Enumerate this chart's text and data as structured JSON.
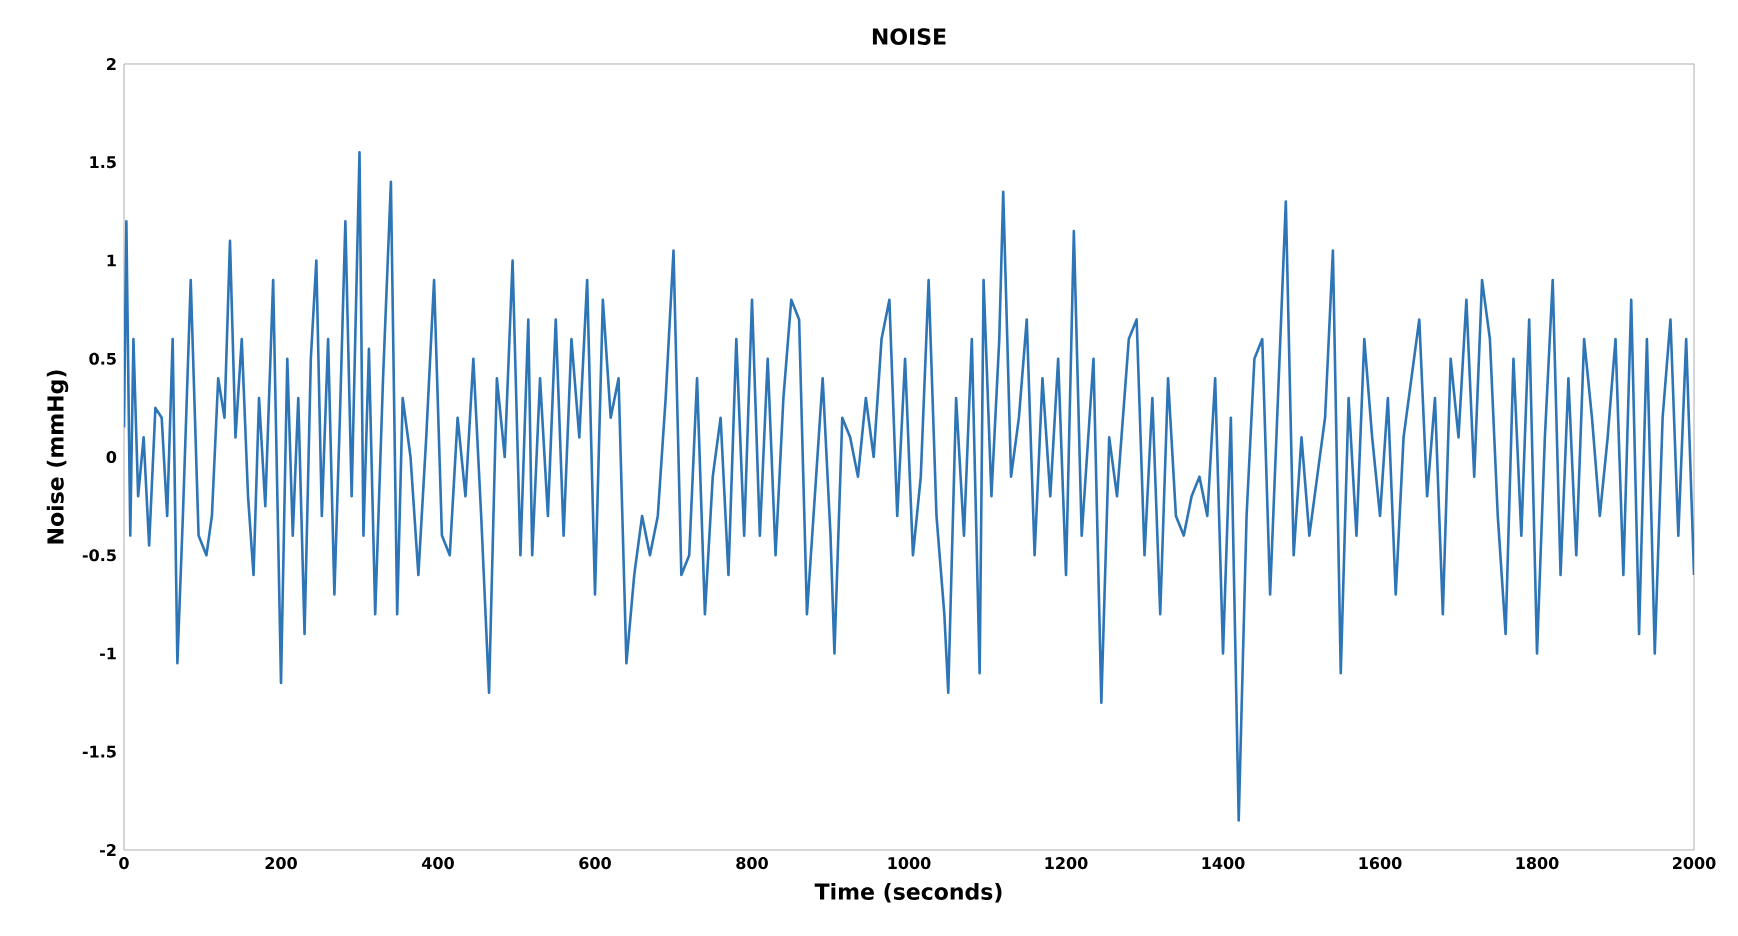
{
  "chart_data": {
    "type": "line",
    "title": "NOISE",
    "xlabel": "Time (seconds)",
    "ylabel": "Noise (mmHg)",
    "x": [
      0,
      3,
      8,
      12,
      18,
      25,
      32,
      40,
      48,
      55,
      62,
      68,
      75,
      85,
      95,
      105,
      112,
      120,
      128,
      135,
      142,
      150,
      158,
      165,
      172,
      180,
      190,
      200,
      208,
      215,
      222,
      230,
      238,
      245,
      252,
      260,
      268,
      275,
      282,
      290,
      300,
      305,
      312,
      320,
      330,
      340,
      348,
      355,
      365,
      375,
      385,
      395,
      405,
      415,
      425,
      435,
      445,
      455,
      465,
      475,
      485,
      495,
      505,
      515,
      520,
      530,
      540,
      550,
      560,
      570,
      580,
      590,
      600,
      610,
      620,
      630,
      640,
      650,
      660,
      670,
      680,
      690,
      700,
      710,
      720,
      730,
      740,
      750,
      760,
      770,
      780,
      790,
      800,
      810,
      820,
      830,
      840,
      850,
      860,
      870,
      880,
      890,
      900,
      905,
      915,
      925,
      935,
      945,
      955,
      965,
      975,
      985,
      995,
      1005,
      1015,
      1025,
      1035,
      1045,
      1050,
      1060,
      1070,
      1080,
      1090,
      1095,
      1105,
      1115,
      1120,
      1130,
      1140,
      1150,
      1160,
      1170,
      1180,
      1190,
      1200,
      1210,
      1220,
      1235,
      1245,
      1255,
      1265,
      1280,
      1290,
      1300,
      1310,
      1320,
      1330,
      1340,
      1350,
      1360,
      1370,
      1380,
      1390,
      1400,
      1410,
      1420,
      1430,
      1440,
      1450,
      1460,
      1470,
      1480,
      1490,
      1500,
      1510,
      1520,
      1530,
      1540,
      1550,
      1560,
      1570,
      1580,
      1590,
      1600,
      1610,
      1620,
      1630,
      1640,
      1650,
      1660,
      1670,
      1680,
      1690,
      1700,
      1710,
      1720,
      1730,
      1740,
      1750,
      1760,
      1770,
      1780,
      1790,
      1800,
      1810,
      1820,
      1830,
      1840,
      1850,
      1860,
      1870,
      1880,
      1890,
      1900,
      1910,
      1920,
      1930,
      1940,
      1950,
      1960,
      1970,
      1980,
      1990,
      2000
    ],
    "series": [
      {
        "color": "#2e75b6",
        "values": [
          0.15,
          1.2,
          -0.4,
          0.6,
          -0.2,
          0.1,
          -0.45,
          0.25,
          0.2,
          -0.3,
          0.6,
          -1.05,
          -0.3,
          0.9,
          -0.4,
          -0.5,
          -0.3,
          0.4,
          0.2,
          1.1,
          0.1,
          0.6,
          -0.2,
          -0.6,
          0.3,
          -0.25,
          0.9,
          -1.15,
          0.5,
          -0.4,
          0.3,
          -0.9,
          0.5,
          1.0,
          -0.3,
          0.6,
          -0.7,
          0.2,
          1.2,
          -0.2,
          1.55,
          -0.4,
          0.55,
          -0.8,
          0.4,
          1.4,
          -0.8,
          0.3,
          0.0,
          -0.6,
          0.1,
          0.9,
          -0.4,
          -0.5,
          0.2,
          -0.2,
          0.5,
          -0.3,
          -1.2,
          0.4,
          0.0,
          1.0,
          -0.5,
          0.7,
          -0.5,
          0.4,
          -0.3,
          0.7,
          -0.4,
          0.6,
          0.1,
          0.9,
          -0.7,
          0.8,
          0.2,
          0.4,
          -1.05,
          -0.6,
          -0.3,
          -0.5,
          -0.3,
          0.3,
          1.05,
          -0.6,
          -0.5,
          0.4,
          -0.8,
          -0.1,
          0.2,
          -0.6,
          0.6,
          -0.4,
          0.8,
          -0.4,
          0.5,
          -0.5,
          0.3,
          0.8,
          0.7,
          -0.8,
          -0.2,
          0.4,
          -0.4,
          -1.0,
          0.2,
          0.1,
          -0.1,
          0.3,
          0.0,
          0.6,
          0.8,
          -0.3,
          0.5,
          -0.5,
          -0.1,
          0.9,
          -0.3,
          -0.8,
          -1.2,
          0.3,
          -0.4,
          0.6,
          -1.1,
          0.9,
          -0.2,
          0.6,
          1.35,
          -0.1,
          0.2,
          0.7,
          -0.5,
          0.4,
          -0.2,
          0.5,
          -0.6,
          1.15,
          -0.4,
          0.5,
          -1.25,
          0.1,
          -0.2,
          0.6,
          0.7,
          -0.5,
          0.3,
          -0.8,
          0.4,
          -0.3,
          -0.4,
          -0.2,
          -0.1,
          -0.3,
          0.4,
          -1.0,
          0.2,
          -1.85,
          -0.3,
          0.5,
          0.6,
          -0.7,
          0.3,
          1.3,
          -0.5,
          0.1,
          -0.4,
          -0.1,
          0.2,
          1.05,
          -1.1,
          0.3,
          -0.4,
          0.6,
          0.1,
          -0.3,
          0.3,
          -0.7,
          0.1,
          0.4,
          0.7,
          -0.2,
          0.3,
          -0.8,
          0.5,
          0.1,
          0.8,
          -0.1,
          0.9,
          0.6,
          -0.3,
          -0.9,
          0.5,
          -0.4,
          0.7,
          -1.0,
          0.1,
          0.9,
          -0.6,
          0.4,
          -0.5,
          0.6,
          0.2,
          -0.3,
          0.1,
          0.6,
          -0.6,
          0.8,
          -0.9,
          0.6,
          -1.0,
          0.2,
          0.7,
          -0.4,
          0.6,
          -0.6
        ]
      }
    ],
    "xlim": [
      0,
      2000
    ],
    "xticks": [
      0,
      200,
      400,
      600,
      800,
      1000,
      1200,
      1400,
      1600,
      1800,
      2000
    ],
    "ylim": [
      -2,
      2
    ],
    "yticks": [
      -2,
      -1.5,
      -1,
      -0.5,
      0,
      0.5,
      1,
      1.5,
      2
    ],
    "grid": false,
    "marker": "none",
    "line_style": "solid"
  }
}
